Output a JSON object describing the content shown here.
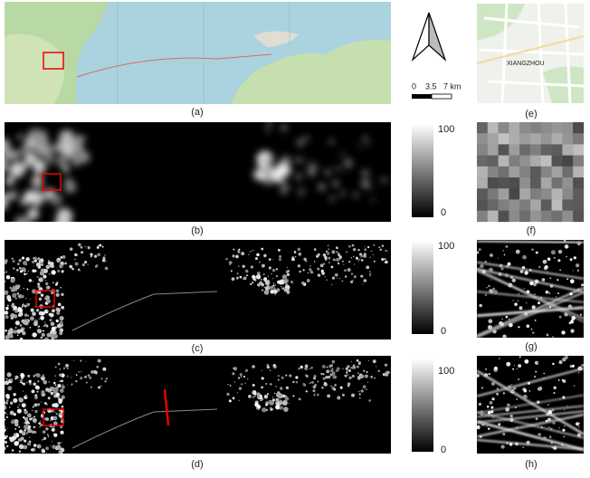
{
  "panels": [
    {
      "label": "(a)"
    },
    {
      "label": "(b)"
    },
    {
      "label": "(c)"
    },
    {
      "label": "(d)"
    },
    {
      "label": "(e)",
      "map_text": "XIANGZHOU"
    },
    {
      "label": "(f)"
    },
    {
      "label": "(g)"
    },
    {
      "label": "(h)"
    }
  ],
  "scale_bar": {
    "ticks": [
      "0",
      "3.5",
      "7 km"
    ]
  },
  "colorbars": [
    {
      "max": 100,
      "min": 0
    },
    {
      "max": 100,
      "min": 0
    },
    {
      "max": 100,
      "min": 0
    }
  ]
}
